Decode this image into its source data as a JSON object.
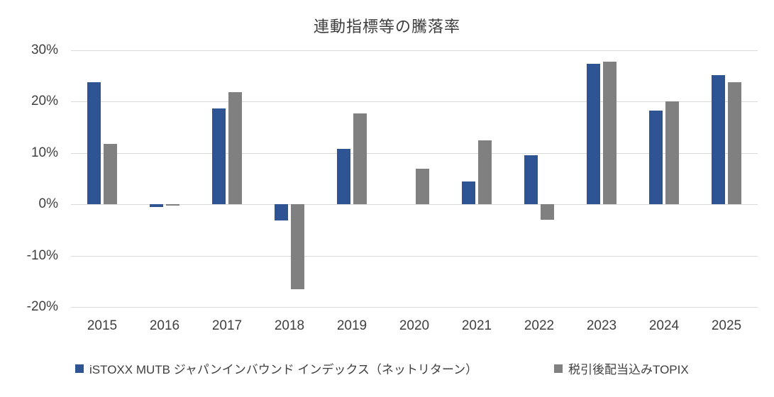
{
  "chart_data": {
    "type": "bar",
    "title": "連動指標等の騰落率",
    "categories": [
      "2015",
      "2016",
      "2017",
      "2018",
      "2019",
      "2020",
      "2021",
      "2022",
      "2023",
      "2024",
      "2025"
    ],
    "series": [
      {
        "name": "iSTOXX MUTB ジャパンインバウンド インデックス（ネットリターン）",
        "color": "#2E5494",
        "values": [
          23.7,
          -0.5,
          18.7,
          -3.2,
          10.8,
          0.0,
          4.5,
          9.5,
          27.4,
          18.3,
          25.1
        ]
      },
      {
        "name": "税引後配当込みTOPIX",
        "color": "#808080",
        "values": [
          11.8,
          -0.3,
          21.8,
          -16.5,
          17.7,
          7.0,
          12.4,
          -3.0,
          27.8,
          20.1,
          23.7
        ]
      }
    ],
    "ylim": [
      -20,
      30
    ],
    "yticks": [
      30,
      20,
      10,
      0,
      -10,
      -20
    ],
    "ytick_labels": [
      "30%",
      "20%",
      "10%",
      "0%",
      "-10%",
      "-20%"
    ],
    "grid": true,
    "legend_position": "bottom",
    "gridline_color": "#D9D9D9"
  }
}
